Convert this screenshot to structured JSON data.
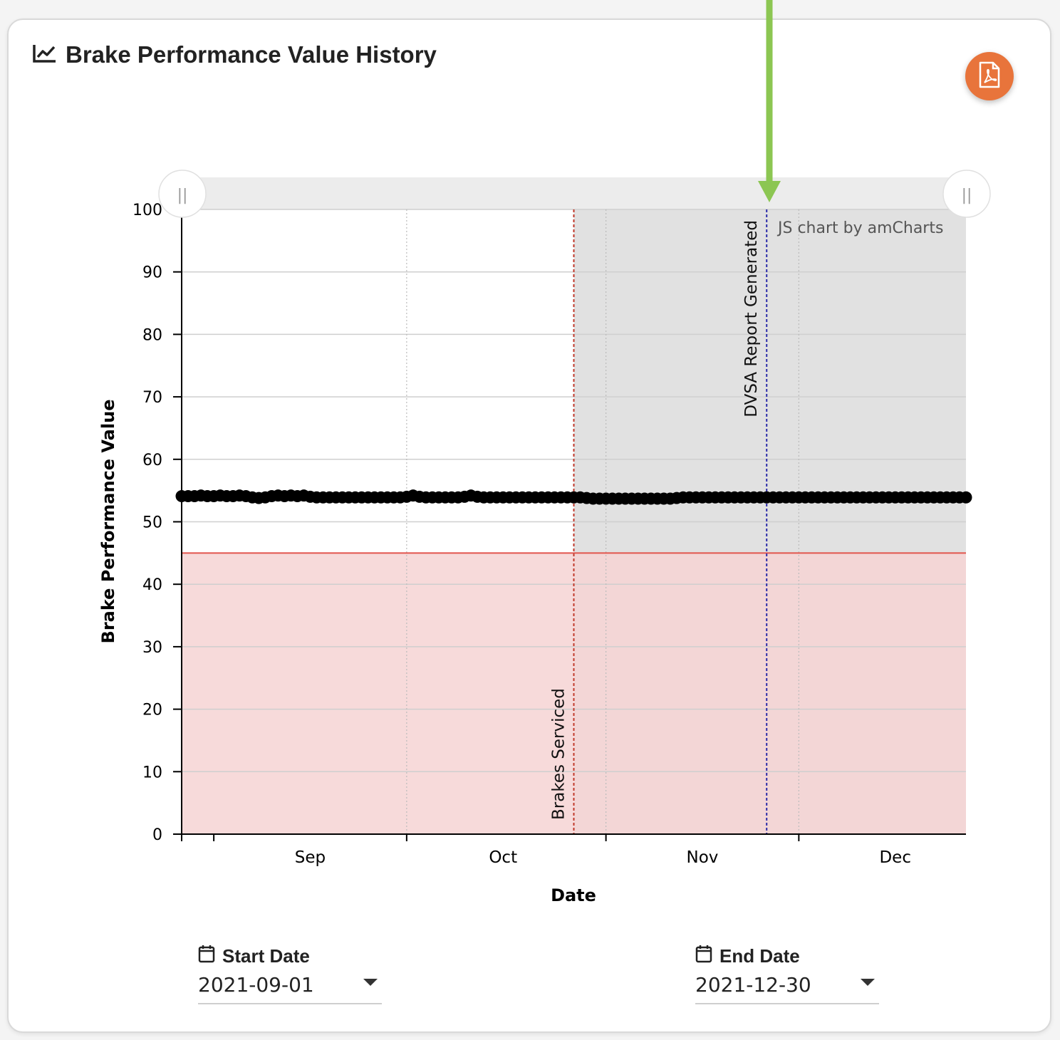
{
  "header": {
    "title": "Brake Performance Value History",
    "title_icon": "line-chart-icon"
  },
  "export_button": {
    "icon": "pdf-file-icon",
    "color": "#e8743b"
  },
  "chart_data": {
    "type": "scatter",
    "title": "",
    "xlabel": "Date",
    "ylabel": "Brake Performance Value",
    "x_range": [
      "2021-08-27",
      "2021-12-27"
    ],
    "ylim": [
      0,
      100
    ],
    "y_ticks": [
      0,
      10,
      20,
      30,
      40,
      50,
      60,
      70,
      80,
      90,
      100
    ],
    "x_ticks": [
      "Sep",
      "Oct",
      "Nov",
      "Dec"
    ],
    "grid": true,
    "watermark": "JS chart by amCharts",
    "threshold": {
      "value": 45,
      "color": "#e2554d",
      "fill": "#f6d4d3",
      "description": "values below shaded red"
    },
    "selected_range": {
      "from": "2021-10-27",
      "to": "2021-12-27",
      "fill": "#e1e1e1"
    },
    "events": [
      {
        "date": "2021-10-27",
        "label": "Brakes Serviced",
        "color": "#c0392b"
      },
      {
        "date": "2021-11-26",
        "label": "DVSA Report Generated",
        "color": "#2a2aa8"
      }
    ],
    "series": [
      {
        "marker_color": "#000000",
        "x": [
          "2021-08-27",
          "2021-08-28",
          "2021-08-29",
          "2021-08-30",
          "2021-08-31",
          "2021-09-01",
          "2021-09-02",
          "2021-09-03",
          "2021-09-04",
          "2021-09-05",
          "2021-09-06",
          "2021-09-07",
          "2021-09-08",
          "2021-09-09",
          "2021-09-10",
          "2021-09-11",
          "2021-09-12",
          "2021-09-13",
          "2021-09-14",
          "2021-09-15",
          "2021-09-16",
          "2021-09-17",
          "2021-09-18",
          "2021-09-19",
          "2021-09-20",
          "2021-09-21",
          "2021-09-22",
          "2021-09-23",
          "2021-09-24",
          "2021-09-25",
          "2021-09-26",
          "2021-09-27",
          "2021-09-28",
          "2021-09-29",
          "2021-09-30",
          "2021-10-01",
          "2021-10-02",
          "2021-10-03",
          "2021-10-04",
          "2021-10-05",
          "2021-10-06",
          "2021-10-07",
          "2021-10-08",
          "2021-10-09",
          "2021-10-10",
          "2021-10-11",
          "2021-10-12",
          "2021-10-13",
          "2021-10-14",
          "2021-10-15",
          "2021-10-16",
          "2021-10-17",
          "2021-10-18",
          "2021-10-19",
          "2021-10-20",
          "2021-10-21",
          "2021-10-22",
          "2021-10-23",
          "2021-10-24",
          "2021-10-25",
          "2021-10-26",
          "2021-10-27",
          "2021-10-28",
          "2021-10-29",
          "2021-10-30",
          "2021-10-31",
          "2021-11-01",
          "2021-11-02",
          "2021-11-03",
          "2021-11-04",
          "2021-11-05",
          "2021-11-06",
          "2021-11-07",
          "2021-11-08",
          "2021-11-09",
          "2021-11-10",
          "2021-11-11",
          "2021-11-12",
          "2021-11-13",
          "2021-11-14",
          "2021-11-15",
          "2021-11-16",
          "2021-11-17",
          "2021-11-18",
          "2021-11-19",
          "2021-11-20",
          "2021-11-21",
          "2021-11-22",
          "2021-11-23",
          "2021-11-24",
          "2021-11-25",
          "2021-11-26",
          "2021-11-27",
          "2021-11-28",
          "2021-11-29",
          "2021-11-30",
          "2021-12-01",
          "2021-12-02",
          "2021-12-03",
          "2021-12-04",
          "2021-12-05",
          "2021-12-06",
          "2021-12-07",
          "2021-12-08",
          "2021-12-09",
          "2021-12-10",
          "2021-12-11",
          "2021-12-12",
          "2021-12-13",
          "2021-12-14",
          "2021-12-15",
          "2021-12-16",
          "2021-12-17",
          "2021-12-18",
          "2021-12-19",
          "2021-12-20",
          "2021-12-21",
          "2021-12-22",
          "2021-12-23",
          "2021-12-24",
          "2021-12-25",
          "2021-12-26",
          "2021-12-27"
        ],
        "y": [
          54.1,
          54.1,
          54.1,
          54.2,
          54.1,
          54.1,
          54.2,
          54.1,
          54.1,
          54.2,
          54.1,
          53.9,
          53.8,
          53.9,
          54.1,
          54.2,
          54.1,
          54.2,
          54.1,
          54.2,
          54.0,
          53.9,
          53.9,
          53.9,
          53.9,
          53.9,
          53.9,
          53.9,
          53.9,
          53.9,
          53.9,
          53.9,
          53.9,
          53.9,
          53.9,
          54.0,
          54.2,
          54.0,
          53.9,
          53.9,
          53.9,
          53.9,
          53.9,
          53.9,
          54.0,
          54.2,
          54.0,
          53.9,
          53.9,
          53.9,
          53.9,
          53.9,
          53.9,
          53.9,
          53.9,
          53.9,
          53.9,
          53.9,
          53.9,
          53.9,
          53.9,
          53.9,
          53.9,
          53.8,
          53.7,
          53.7,
          53.7,
          53.7,
          53.7,
          53.7,
          53.7,
          53.7,
          53.7,
          53.7,
          53.7,
          53.7,
          53.7,
          53.8,
          53.9,
          53.9,
          53.9,
          53.9,
          53.9,
          53.9,
          53.9,
          53.9,
          53.9,
          53.9,
          53.9,
          53.9,
          53.9,
          53.9,
          53.9,
          53.9,
          53.9,
          53.9,
          53.9,
          53.9,
          53.9,
          53.9,
          53.9,
          53.9,
          53.9,
          53.9,
          53.9,
          53.9,
          53.9,
          53.9,
          53.9,
          53.9,
          53.9,
          53.9,
          53.9,
          53.9,
          53.9,
          53.9,
          53.9,
          53.9,
          53.9,
          53.9,
          53.9,
          53.9,
          53.9
        ]
      }
    ]
  },
  "scrollbar": {
    "left_grip": "||",
    "right_grip": "||"
  },
  "start_date": {
    "label": "Start Date",
    "icon": "calendar-icon",
    "value": "2021-09-01"
  },
  "end_date": {
    "label": "End Date",
    "icon": "calendar-icon",
    "value": "2021-12-30"
  }
}
